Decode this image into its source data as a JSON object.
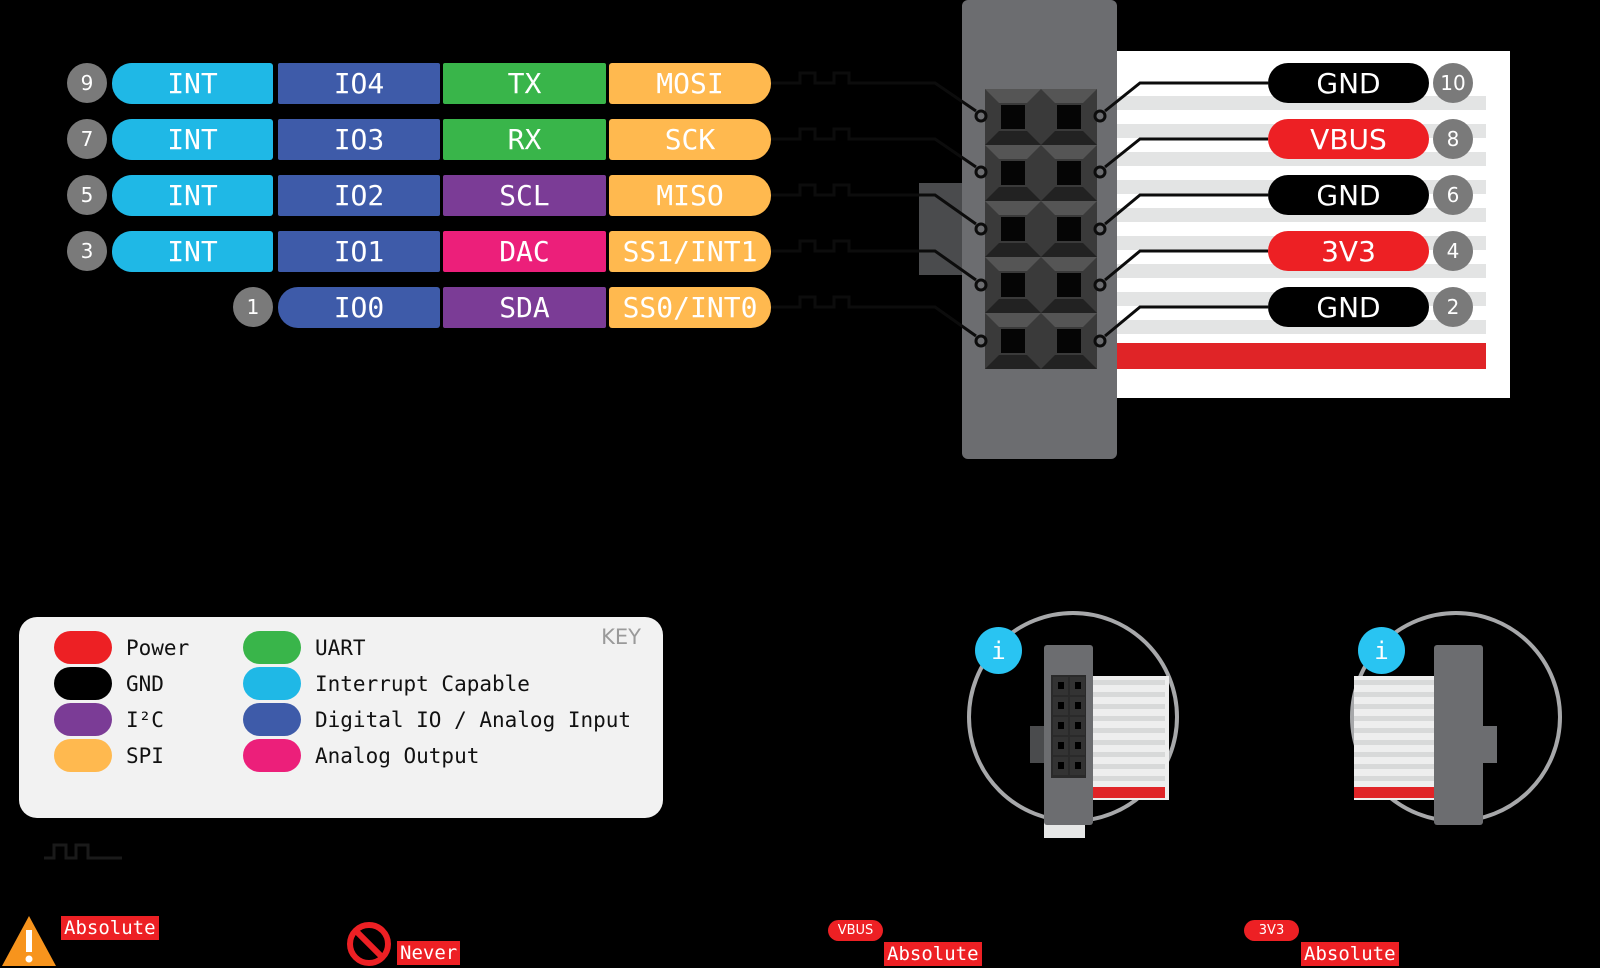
{
  "colors": {
    "power": "#ed2024",
    "gnd": "#000000",
    "i2c": "#7b3c96",
    "spi": "#ffb94f",
    "uart": "#39b54a",
    "interrupt": "#1fb8e6",
    "digital_io": "#3e5ba9",
    "analog_out": "#ec1f7a",
    "pin_number": "#7a7a7a",
    "connector": "#6c6d70"
  },
  "left_rows": [
    {
      "pin": "9",
      "cells": [
        {
          "label": "INT",
          "type": "interrupt"
        },
        {
          "label": "IO4",
          "type": "digital_io"
        },
        {
          "label": "TX",
          "type": "uart"
        },
        {
          "label": "MOSI",
          "type": "spi"
        }
      ]
    },
    {
      "pin": "7",
      "cells": [
        {
          "label": "INT",
          "type": "interrupt"
        },
        {
          "label": "IO3",
          "type": "digital_io"
        },
        {
          "label": "RX",
          "type": "uart"
        },
        {
          "label": "SCK",
          "type": "spi"
        }
      ]
    },
    {
      "pin": "5",
      "cells": [
        {
          "label": "INT",
          "type": "interrupt"
        },
        {
          "label": "IO2",
          "type": "digital_io"
        },
        {
          "label": "SCL",
          "type": "i2c"
        },
        {
          "label": "MISO",
          "type": "spi"
        }
      ]
    },
    {
      "pin": "3",
      "cells": [
        {
          "label": "INT",
          "type": "interrupt"
        },
        {
          "label": "IO1",
          "type": "digital_io"
        },
        {
          "label": "DAC",
          "type": "analog_out"
        },
        {
          "label": "SS1/INT1",
          "type": "spi"
        }
      ]
    },
    {
      "pin": "1",
      "cells": [
        {
          "label": "IO0",
          "type": "digital_io"
        },
        {
          "label": "SDA",
          "type": "i2c"
        },
        {
          "label": "SS0/INT0",
          "type": "spi"
        }
      ]
    }
  ],
  "right_rows": [
    {
      "pin": "10",
      "label": "GND",
      "type": "gnd"
    },
    {
      "pin": "8",
      "label": "VBUS",
      "type": "power"
    },
    {
      "pin": "6",
      "label": "GND",
      "type": "gnd"
    },
    {
      "pin": "4",
      "label": "3V3",
      "type": "power"
    },
    {
      "pin": "2",
      "label": "GND",
      "type": "gnd"
    }
  ],
  "key": {
    "title": "KEY",
    "items": [
      {
        "label": "Power",
        "type": "power"
      },
      {
        "label": "GND",
        "type": "gnd"
      },
      {
        "label": "I²C",
        "type": "i2c"
      },
      {
        "label": "SPI",
        "type": "spi"
      },
      {
        "label": "UART",
        "type": "uart"
      },
      {
        "label": "Interrupt Capable",
        "type": "interrupt"
      },
      {
        "label": "Digital IO / Analog Input",
        "type": "digital_io"
      },
      {
        "label": "Analog Output",
        "type": "analog_out"
      }
    ]
  },
  "info_icon": "i",
  "footer": {
    "warning_label": "Absolute",
    "never_label": "Never",
    "vbus_badge": "VBUS",
    "vbus_label": "Absolute",
    "v3_badge": "3V3",
    "v3_label": "Absolute"
  }
}
